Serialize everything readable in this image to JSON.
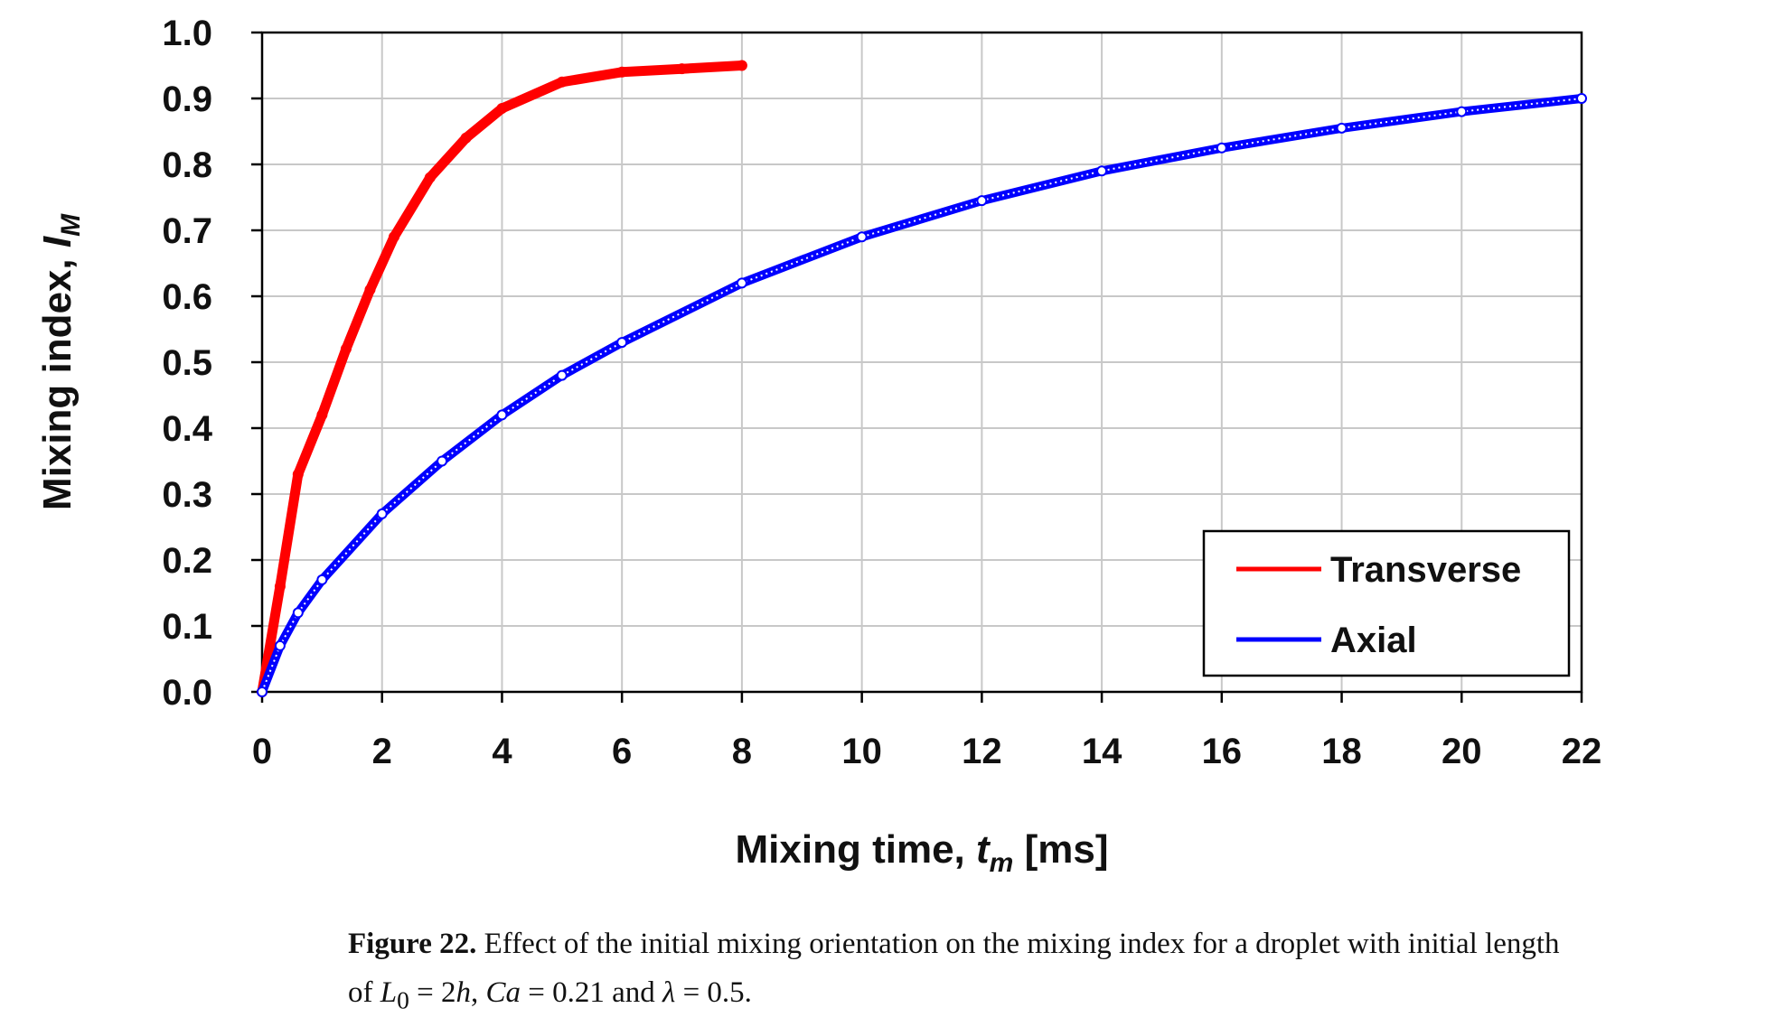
{
  "chart_data": {
    "type": "line",
    "xlabel": {
      "main": "Mixing time, ",
      "var": "t",
      "sub": "m",
      "unit": " [ms]"
    },
    "ylabel": {
      "main": "Mixing index, ",
      "var": "I",
      "sub": "M"
    },
    "xlim": [
      0,
      22
    ],
    "ylim": [
      0,
      1.0
    ],
    "xticks": [
      "0",
      "2",
      "4",
      "6",
      "8",
      "10",
      "12",
      "14",
      "16",
      "18",
      "20",
      "22"
    ],
    "yticks": [
      "0.0",
      "0.1",
      "0.2",
      "0.3",
      "0.4",
      "0.5",
      "0.6",
      "0.7",
      "0.8",
      "0.9",
      "1.0"
    ],
    "grid": true,
    "legend_position": "bottom-right",
    "series": [
      {
        "name": "Transverse",
        "color": "#ff0000",
        "x": [
          0,
          0.3,
          0.6,
          1.0,
          1.4,
          1.8,
          2.2,
          2.8,
          3.4,
          4.0,
          5.0,
          6.0,
          7.0,
          8.0
        ],
        "y": [
          0,
          0.16,
          0.33,
          0.42,
          0.52,
          0.61,
          0.69,
          0.78,
          0.84,
          0.885,
          0.925,
          0.94,
          0.945,
          0.95
        ]
      },
      {
        "name": "Axial",
        "color": "#0000ff",
        "x": [
          0,
          0.3,
          0.6,
          1.0,
          2.0,
          3.0,
          4.0,
          5.0,
          6.0,
          8.0,
          10.0,
          12.0,
          14.0,
          16.0,
          18.0,
          20.0,
          22.0
        ],
        "y": [
          0,
          0.07,
          0.12,
          0.17,
          0.27,
          0.35,
          0.42,
          0.48,
          0.53,
          0.62,
          0.69,
          0.745,
          0.79,
          0.825,
          0.855,
          0.88,
          0.9
        ]
      }
    ]
  },
  "caption": {
    "label": "Figure 22.",
    "line1": " Effect of the initial mixing orientation on the mixing index for a droplet with initial length",
    "line2_prefix": "of ",
    "L": "L",
    "L_sub": "0",
    "eq1": " = 2",
    "h": "h",
    "comma": ", ",
    "Ca": "Ca",
    "eq2": " = 0.21 and ",
    "lambda": "λ",
    "eq3": " = 0.5."
  }
}
